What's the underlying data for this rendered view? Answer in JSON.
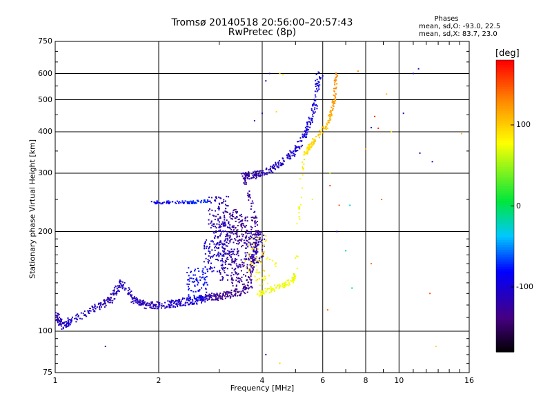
{
  "chart_data": {
    "type": "scatter",
    "title": "Tromsø 20140518 20:56:00–20:57:43",
    "subtitle": "RwPretec (8p)",
    "xlabel": "Frequency [MHz]",
    "ylabel": "Stationary phase Virtual Height [km]",
    "x_scale": "log",
    "y_scale": "log",
    "xlim": [
      1,
      16
    ],
    "ylim": [
      75,
      750
    ],
    "x_ticks": [
      1,
      2,
      4,
      6,
      8,
      10,
      16
    ],
    "y_ticks": [
      75,
      100,
      200,
      300,
      400,
      500,
      600,
      750
    ],
    "grid": true,
    "annotation": {
      "title": "Phases",
      "line_o": "mean, sd,O: -93.0, 22.5",
      "line_x": "mean, sd,X: 83.7, 23.0"
    },
    "colorbar": {
      "label": "[deg]",
      "range": [
        -180,
        180
      ],
      "ticks": [
        100,
        0,
        -100
      ],
      "colormap": "rainbow (black-violet-blue-cyan-green-yellow-red)"
    },
    "series": [
      {
        "x_range": [
          1.0,
          6.0
        ],
        "trace": [
          [
            1.0,
            113,
            -120
          ],
          [
            1.05,
            103,
            -110
          ],
          [
            1.12,
            108,
            -100
          ],
          [
            1.3,
            117,
            -110
          ],
          [
            1.45,
            125,
            -115
          ],
          [
            1.55,
            140,
            -105
          ],
          [
            1.7,
            124,
            -110
          ],
          [
            1.85,
            120,
            -115
          ],
          [
            2.0,
            120,
            -110
          ],
          [
            2.2,
            121,
            -105
          ],
          [
            2.4,
            123,
            -100
          ],
          [
            2.6,
            124,
            -90
          ],
          [
            2.8,
            127,
            -120
          ],
          [
            3.0,
            127,
            -130
          ],
          [
            3.3,
            130,
            -135
          ],
          [
            3.6,
            134,
            -130
          ],
          [
            3.8,
            170,
            -125
          ],
          [
            3.9,
            200,
            -125
          ],
          [
            3.5,
            295,
            -125
          ],
          [
            3.8,
            296,
            -120
          ],
          [
            4.2,
            305,
            -110
          ],
          [
            4.6,
            325,
            -105
          ],
          [
            5.0,
            350,
            -100
          ],
          [
            5.4,
            400,
            -95
          ],
          [
            5.7,
            480,
            -90
          ],
          [
            5.85,
            600,
            -95
          ]
        ],
        "ray_2f": [
          [
            1.92,
            245,
            -90
          ],
          [
            2.2,
            245,
            -85
          ],
          [
            2.5,
            245,
            -70
          ],
          [
            2.8,
            248,
            -70
          ]
        ],
        "patches": [
          [
            2.6,
            140,
            -80
          ],
          [
            2.9,
            170,
            -100
          ],
          [
            3.1,
            190,
            -110
          ],
          [
            3.3,
            210,
            -125
          ],
          [
            3.6,
            200,
            -130
          ],
          [
            3.2,
            160,
            -120
          ],
          [
            3.5,
            150,
            -125
          ],
          [
            3.0,
            230,
            -115
          ],
          [
            3.8,
            180,
            -110
          ]
        ]
      },
      {
        "x_range": [
          3.7,
          6.8
        ],
        "trace": [
          [
            3.9,
            130,
            80
          ],
          [
            4.2,
            133,
            75
          ],
          [
            4.6,
            138,
            75
          ],
          [
            4.9,
            142,
            80
          ],
          [
            5.0,
            148,
            70
          ],
          [
            5.3,
            345,
            90
          ],
          [
            5.5,
            360,
            95
          ],
          [
            5.7,
            380,
            100
          ],
          [
            6.2,
            420,
            110
          ],
          [
            6.4,
            470,
            120
          ],
          [
            6.5,
            520,
            125
          ],
          [
            6.6,
            600,
            130
          ]
        ],
        "patches": [
          [
            3.8,
            160,
            95
          ],
          [
            3.9,
            175,
            85
          ],
          [
            4.1,
            150,
            80
          ]
        ]
      }
    ],
    "scattered_points": [
      [
        1.4,
        90,
        -110
      ],
      [
        4.5,
        80,
        100
      ],
      [
        4.1,
        85,
        -105
      ],
      [
        3.8,
        432,
        -120
      ],
      [
        4.0,
        455,
        -115
      ],
      [
        4.1,
        570,
        -110
      ],
      [
        4.2,
        600,
        -115
      ],
      [
        4.6,
        595,
        90
      ],
      [
        4.4,
        460,
        95
      ],
      [
        6.3,
        300,
        60
      ],
      [
        6.3,
        275,
        160
      ],
      [
        6.6,
        200,
        -120
      ],
      [
        6.7,
        240,
        150
      ],
      [
        7.2,
        240,
        -20
      ],
      [
        7.0,
        175,
        -20
      ],
      [
        7.6,
        610,
        130
      ],
      [
        8.0,
        355,
        120
      ],
      [
        8.3,
        412,
        -110
      ],
      [
        8.5,
        445,
        170
      ],
      [
        8.7,
        410,
        170
      ],
      [
        8.9,
        250,
        140
      ],
      [
        9.2,
        520,
        110
      ],
      [
        9.5,
        400,
        90
      ],
      [
        10.3,
        455,
        -115
      ],
      [
        11.0,
        600,
        -110
      ],
      [
        11.4,
        620,
        -115
      ],
      [
        11.5,
        345,
        -115
      ],
      [
        12.3,
        130,
        150
      ],
      [
        12.5,
        325,
        -110
      ],
      [
        12.8,
        90,
        100
      ],
      [
        15.2,
        395,
        110
      ],
      [
        7.3,
        135,
        -20
      ],
      [
        8.3,
        160,
        140
      ],
      [
        6.2,
        116,
        140
      ],
      [
        5.6,
        250,
        70
      ],
      [
        5.3,
        330,
        60
      ],
      [
        6.0,
        590,
        -100
      ],
      [
        4.5,
        600,
        100
      ]
    ]
  }
}
